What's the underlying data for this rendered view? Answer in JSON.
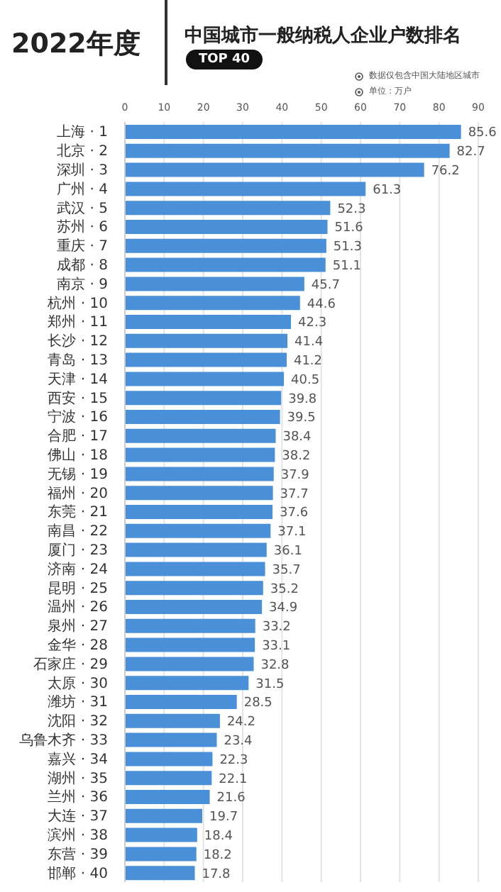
{
  "chart_data": {
    "type": "bar",
    "orientation": "horizontal",
    "title": "中国城市一般纳税人企业户数排名",
    "subtitle": "TOP 40",
    "annotations": [
      "2022年度",
      "数据仅包含中国大陆地区城市",
      "单位：万户"
    ],
    "categories": [
      "上海 · 1",
      "北京 · 2",
      "深圳 · 3",
      "广州 · 4",
      "武汉 · 5",
      "苏州 · 6",
      "重庆 · 7",
      "成都 · 8",
      "南京 · 9",
      "杭州 · 10",
      "郑州 · 11",
      "长沙 · 12",
      "青岛 · 13",
      "天津 · 14",
      "西安 · 15",
      "宁波 · 16",
      "合肥 · 17",
      "佛山 · 18",
      "无锡 · 19",
      "福州 · 20",
      "东莞 · 21",
      "南昌 · 22",
      "厦门 · 23",
      "济南 · 24",
      "昆明 · 25",
      "温州 · 26",
      "泉州 · 27",
      "金华 · 28",
      "石家庄 · 29",
      "太原 · 30",
      "潍坊 · 31",
      "沈阳 · 32",
      "乌鲁木齐 · 33",
      "嘉兴 · 34",
      "湖州 · 35",
      "兰州 · 36",
      "大连 · 37",
      "滨州 · 38",
      "东营 · 39",
      "邯郸 · 40"
    ],
    "values": [
      85.6,
      82.7,
      76.2,
      61.3,
      52.3,
      51.6,
      51.3,
      51.1,
      45.7,
      44.6,
      42.3,
      41.4,
      41.2,
      40.5,
      39.8,
      39.5,
      38.4,
      38.2,
      37.9,
      37.7,
      37.6,
      37.1,
      36.1,
      35.7,
      35.2,
      34.9,
      33.2,
      33.1,
      32.8,
      31.5,
      28.5,
      24.2,
      23.4,
      22.3,
      22.1,
      21.6,
      19.7,
      18.4,
      18.2,
      17.8
    ],
    "color": "#4a90d9",
    "xlim": [
      0,
      90
    ],
    "xticks": [
      0,
      10,
      20,
      30,
      40,
      50,
      60,
      70,
      80,
      90
    ],
    "grid": "x",
    "data_labels": true
  }
}
